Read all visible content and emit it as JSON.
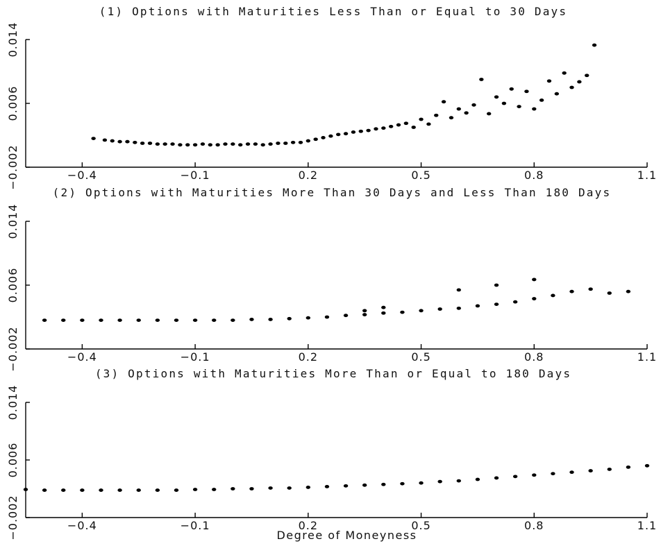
{
  "chart_data": [
    {
      "type": "scatter",
      "title": "(1) Options with Maturities Less Than or Equal to 30 Days",
      "xlim": [
        -0.55,
        1.1
      ],
      "ylim": [
        -0.002,
        0.014
      ],
      "x_ticks": [
        "-0.4",
        "-0.1",
        "0.2",
        "0.5",
        "0.8",
        "1.1"
      ],
      "y_ticks": [
        "-0.002",
        "0.006",
        "0.014"
      ],
      "grid": false,
      "series": [
        {
          "points": [
            [
              -0.37,
              0.0016
            ],
            [
              -0.34,
              0.0014
            ],
            [
              -0.32,
              0.0013
            ],
            [
              -0.3,
              0.0012
            ],
            [
              -0.28,
              0.0012
            ],
            [
              -0.26,
              0.0011
            ],
            [
              -0.24,
              0.001
            ],
            [
              -0.22,
              0.001
            ],
            [
              -0.2,
              0.0009
            ],
            [
              -0.18,
              0.0009
            ],
            [
              -0.16,
              0.0009
            ],
            [
              -0.14,
              0.0008
            ],
            [
              -0.12,
              0.0008
            ],
            [
              -0.1,
              0.0008
            ],
            [
              -0.08,
              0.0009
            ],
            [
              -0.06,
              0.0008
            ],
            [
              -0.04,
              0.0008
            ],
            [
              -0.02,
              0.0009
            ],
            [
              0.0,
              0.0009
            ],
            [
              0.02,
              0.0008
            ],
            [
              0.04,
              0.0009
            ],
            [
              0.06,
              0.0009
            ],
            [
              0.08,
              0.0008
            ],
            [
              0.1,
              0.0009
            ],
            [
              0.12,
              0.001
            ],
            [
              0.14,
              0.001
            ],
            [
              0.16,
              0.0011
            ],
            [
              0.18,
              0.0011
            ],
            [
              0.2,
              0.0013
            ],
            [
              0.22,
              0.0015
            ],
            [
              0.24,
              0.0017
            ],
            [
              0.26,
              0.0019
            ],
            [
              0.28,
              0.0021
            ],
            [
              0.3,
              0.0022
            ],
            [
              0.32,
              0.0024
            ],
            [
              0.34,
              0.0025
            ],
            [
              0.36,
              0.0026
            ],
            [
              0.38,
              0.0028
            ],
            [
              0.4,
              0.0029
            ],
            [
              0.42,
              0.0031
            ],
            [
              0.44,
              0.0033
            ],
            [
              0.46,
              0.0035
            ],
            [
              0.48,
              0.003
            ],
            [
              0.5,
              0.004
            ],
            [
              0.52,
              0.0034
            ],
            [
              0.54,
              0.0045
            ],
            [
              0.56,
              0.0062
            ],
            [
              0.58,
              0.0042
            ],
            [
              0.6,
              0.0053
            ],
            [
              0.62,
              0.0048
            ],
            [
              0.64,
              0.0058
            ],
            [
              0.66,
              0.009
            ],
            [
              0.68,
              0.0047
            ],
            [
              0.7,
              0.0068
            ],
            [
              0.72,
              0.006
            ],
            [
              0.74,
              0.0078
            ],
            [
              0.76,
              0.0056
            ],
            [
              0.78,
              0.0075
            ],
            [
              0.8,
              0.0053
            ],
            [
              0.82,
              0.0064
            ],
            [
              0.84,
              0.0088
            ],
            [
              0.86,
              0.0072
            ],
            [
              0.88,
              0.0098
            ],
            [
              0.9,
              0.008
            ],
            [
              0.92,
              0.0087
            ],
            [
              0.94,
              0.0095
            ],
            [
              0.96,
              0.0133
            ]
          ]
        }
      ]
    },
    {
      "type": "scatter",
      "title": "(2) Options with Maturities More Than 30 Days and Less Than 180 Days",
      "xlim": [
        -0.55,
        1.1
      ],
      "ylim": [
        -0.002,
        0.014
      ],
      "x_ticks": [
        "-0.4",
        "-0.1",
        "0.2",
        "0.5",
        "0.8",
        "1.1"
      ],
      "y_ticks": [
        "-0.002",
        "0.006",
        "0.014"
      ],
      "grid": false,
      "series": [
        {
          "points": [
            [
              -0.5,
              0.0016
            ],
            [
              -0.45,
              0.0016
            ],
            [
              -0.4,
              0.0016
            ],
            [
              -0.35,
              0.0016
            ],
            [
              -0.3,
              0.0016
            ],
            [
              -0.25,
              0.0016
            ],
            [
              -0.2,
              0.0016
            ],
            [
              -0.15,
              0.0016
            ],
            [
              -0.1,
              0.0016
            ],
            [
              -0.05,
              0.0016
            ],
            [
              0.0,
              0.0016
            ],
            [
              0.05,
              0.0017
            ],
            [
              0.1,
              0.0017
            ],
            [
              0.15,
              0.0018
            ],
            [
              0.2,
              0.0019
            ],
            [
              0.25,
              0.002
            ],
            [
              0.3,
              0.0022
            ],
            [
              0.35,
              0.0023
            ],
            [
              0.4,
              0.0025
            ],
            [
              0.45,
              0.0026
            ],
            [
              0.5,
              0.0028
            ],
            [
              0.55,
              0.003
            ],
            [
              0.6,
              0.0031
            ],
            [
              0.65,
              0.0034
            ],
            [
              0.7,
              0.0036
            ],
            [
              0.75,
              0.0039
            ],
            [
              0.8,
              0.0043
            ],
            [
              0.85,
              0.0047
            ],
            [
              0.9,
              0.0052
            ],
            [
              0.95,
              0.0055
            ],
            [
              1.0,
              0.005
            ],
            [
              1.05,
              0.0052
            ],
            [
              0.6,
              0.0054
            ],
            [
              0.7,
              0.006
            ],
            [
              0.8,
              0.0067
            ],
            [
              0.4,
              0.0032
            ],
            [
              0.35,
              0.0028
            ]
          ]
        }
      ]
    },
    {
      "type": "scatter",
      "title": "(3) Options with Maturities More Than or Equal to 180 Days",
      "xlim": [
        -0.55,
        1.1
      ],
      "ylim": [
        -0.002,
        0.014
      ],
      "x_ticks": [
        "-0.4",
        "-0.1",
        "0.2",
        "0.5",
        "0.8",
        "1.1"
      ],
      "y_ticks": [
        "-0.002",
        "0.006",
        "0.014"
      ],
      "xlabel": "Degree of Moneyness",
      "grid": false,
      "series": [
        {
          "points": [
            [
              -0.55,
              0.0019
            ],
            [
              -0.5,
              0.0018
            ],
            [
              -0.45,
              0.0018
            ],
            [
              -0.4,
              0.0018
            ],
            [
              -0.35,
              0.0018
            ],
            [
              -0.3,
              0.0018
            ],
            [
              -0.25,
              0.0018
            ],
            [
              -0.2,
              0.0018
            ],
            [
              -0.15,
              0.0018
            ],
            [
              -0.1,
              0.0019
            ],
            [
              -0.05,
              0.0019
            ],
            [
              0.0,
              0.002
            ],
            [
              0.05,
              0.002
            ],
            [
              0.1,
              0.0021
            ],
            [
              0.15,
              0.0021
            ],
            [
              0.2,
              0.0022
            ],
            [
              0.25,
              0.0023
            ],
            [
              0.3,
              0.0024
            ],
            [
              0.35,
              0.0025
            ],
            [
              0.4,
              0.0026
            ],
            [
              0.45,
              0.0027
            ],
            [
              0.5,
              0.0028
            ],
            [
              0.55,
              0.003
            ],
            [
              0.6,
              0.0031
            ],
            [
              0.65,
              0.0033
            ],
            [
              0.7,
              0.0035
            ],
            [
              0.75,
              0.0037
            ],
            [
              0.8,
              0.0039
            ],
            [
              0.85,
              0.0041
            ],
            [
              0.9,
              0.0043
            ],
            [
              0.95,
              0.0045
            ],
            [
              1.0,
              0.0047
            ],
            [
              1.05,
              0.005
            ],
            [
              1.1,
              0.0052
            ]
          ]
        }
      ]
    }
  ]
}
